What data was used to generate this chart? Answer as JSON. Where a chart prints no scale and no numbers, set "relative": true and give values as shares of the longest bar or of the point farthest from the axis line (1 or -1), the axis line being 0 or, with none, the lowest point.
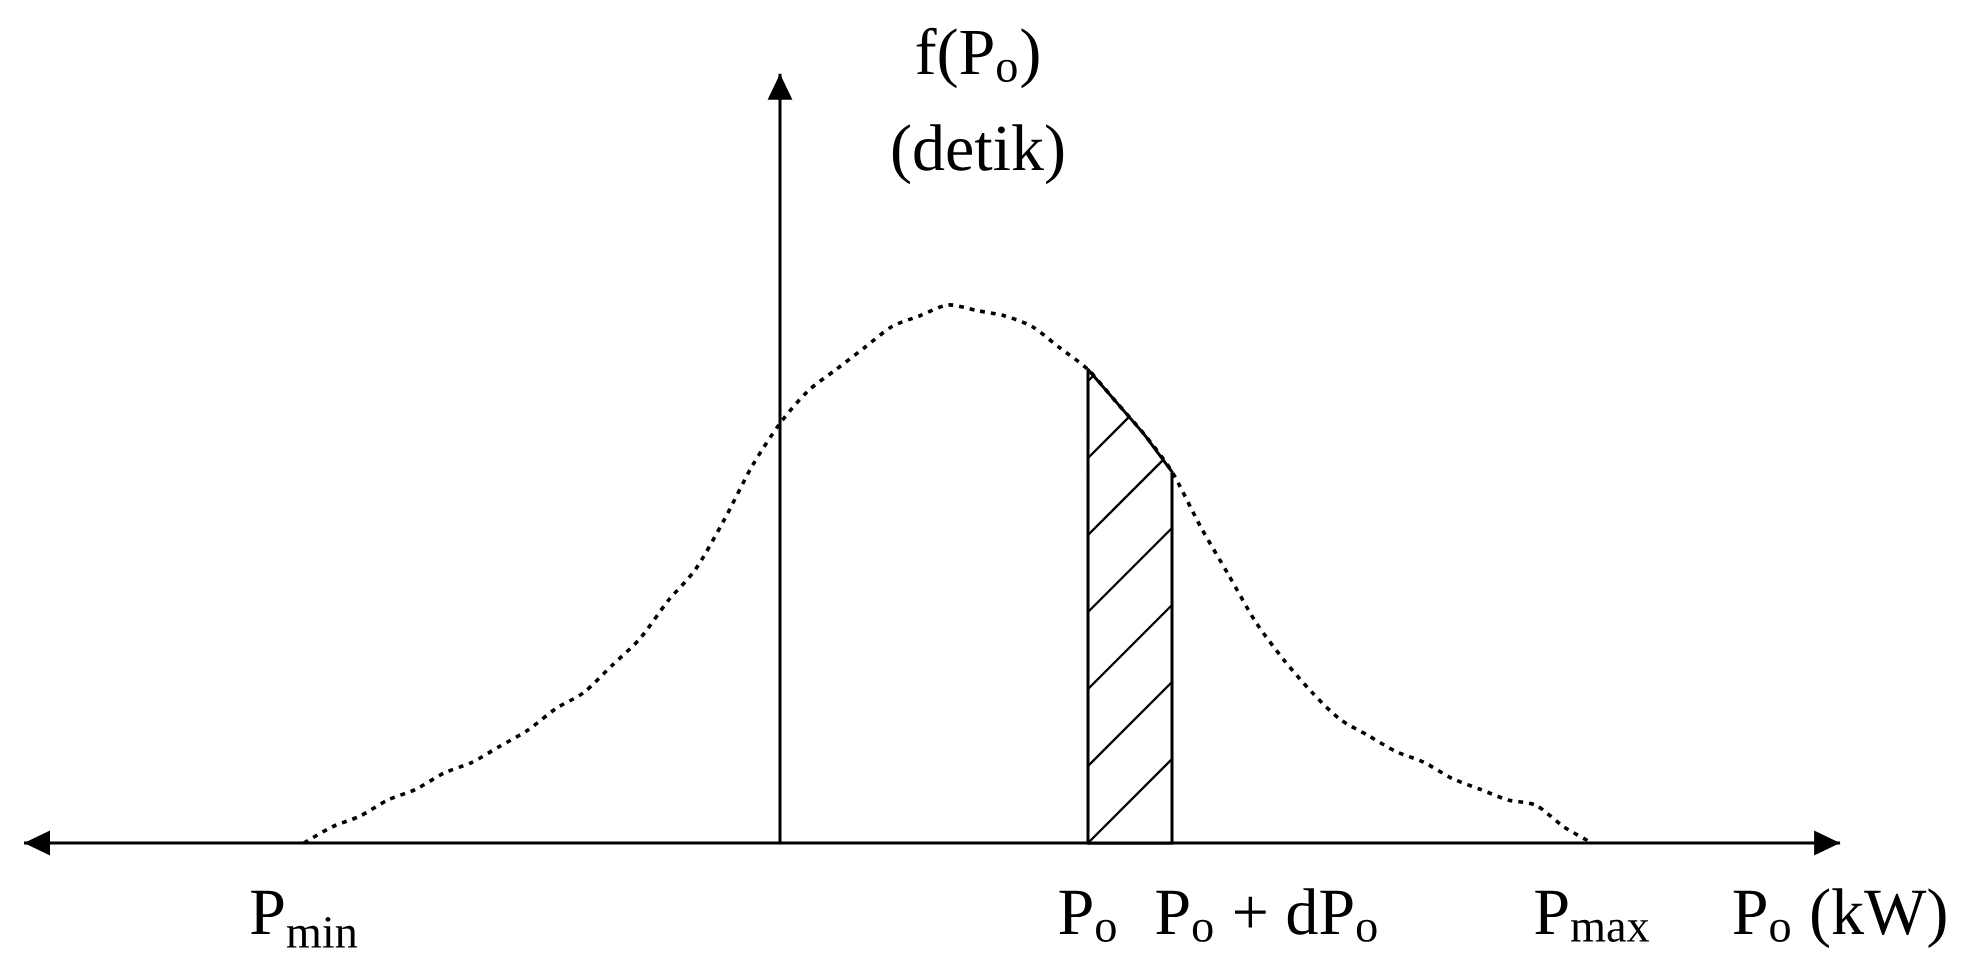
{
  "chart_data": {
    "type": "line",
    "relative": true,
    "categories": [
      "P$_{min}$",
      null,
      null,
      null,
      null,
      null,
      null,
      null,
      null,
      null,
      null,
      null,
      null,
      null,
      null,
      null,
      null,
      null,
      null,
      null,
      null,
      null,
      null,
      null,
      null,
      null,
      null,
      null,
      "P$_{o}$",
      null,
      null,
      null,
      null,
      null,
      null,
      null,
      null,
      null,
      null,
      null,
      null,
      null,
      null,
      null,
      null,
      null,
      "P$_{max}$"
    ],
    "xlabel": "P$_{o}$ (kW)",
    "ylabel": "f(P$_{o}$) (detik)",
    "marker": "none",
    "annotations": [
      "P$_{o}$ + dP$_{o}$"
    ],
    "series": [
      {
        "type": "area",
        "color": "#000000",
        "line_style": "solid",
        "values": [
          null,
          null,
          null,
          null,
          null,
          null,
          null,
          null,
          null,
          null,
          null,
          null,
          null,
          null,
          null,
          null,
          null,
          null,
          null,
          null,
          null,
          null,
          null,
          null,
          null,
          null,
          null,
          null,
          0.88,
          0.82,
          0.76,
          0.69,
          null,
          null,
          null,
          null,
          null,
          null,
          null,
          null,
          null,
          null,
          null,
          null,
          null,
          null,
          null
        ]
      },
      {
        "color": "#000000",
        "line_style": "dotted",
        "values": [
          0,
          0.03,
          0.05,
          0.08,
          0.1,
          0.13,
          0.15,
          0.18,
          0.21,
          0.25,
          0.28,
          0.33,
          0.38,
          0.45,
          0.51,
          0.6,
          0.7,
          0.78,
          0.84,
          0.88,
          0.92,
          0.96,
          0.98,
          1,
          0.99,
          0.98,
          0.96,
          0.92,
          0.88,
          0.82,
          0.76,
          0.69,
          0.59,
          0.5,
          0.41,
          0.34,
          0.28,
          0.23,
          0.2,
          0.17,
          0.15,
          0.12,
          0.1,
          0.08,
          0.07,
          0.03,
          0
        ]
      }
    ]
  }
}
